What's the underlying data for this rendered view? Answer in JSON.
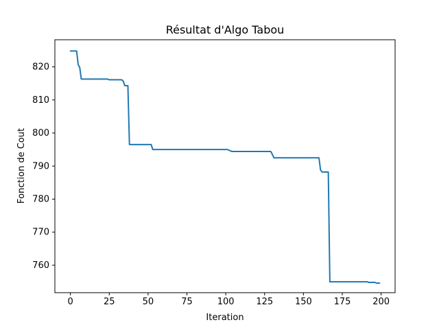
{
  "chart_data": {
    "type": "line",
    "title": "Résultat d'Algo Tabou",
    "xlabel": "Iteration",
    "ylabel": "Fonction de Cout",
    "xlim": [
      -10,
      209
    ],
    "ylim": [
      751.7,
      828.2
    ],
    "xticks": [
      0,
      25,
      50,
      75,
      100,
      125,
      150,
      175,
      200
    ],
    "yticks": [
      760,
      770,
      780,
      790,
      800,
      810,
      820
    ],
    "grid": false,
    "legend": "none",
    "series": [
      {
        "color": "#1f77b4",
        "points": [
          [
            0,
            824.8
          ],
          [
            4,
            824.8
          ],
          [
            5,
            820.7
          ],
          [
            6,
            819.8
          ],
          [
            7,
            816.3
          ],
          [
            24,
            816.3
          ],
          [
            25,
            816.1
          ],
          [
            33,
            816.1
          ],
          [
            34,
            815.7
          ],
          [
            35,
            814.3
          ],
          [
            37,
            814.3
          ],
          [
            38,
            796.5
          ],
          [
            52,
            796.5
          ],
          [
            53,
            795.0
          ],
          [
            101,
            795.0
          ],
          [
            103,
            794.6
          ],
          [
            104,
            794.4
          ],
          [
            129,
            794.4
          ],
          [
            130,
            793.5
          ],
          [
            131,
            792.5
          ],
          [
            160,
            792.5
          ],
          [
            161,
            788.8
          ],
          [
            162,
            788.2
          ],
          [
            166,
            788.2
          ],
          [
            167,
            755.0
          ],
          [
            191,
            755.0
          ],
          [
            192,
            754.8
          ],
          [
            196,
            754.8
          ],
          [
            197,
            754.6
          ],
          [
            199,
            754.6
          ]
        ]
      }
    ]
  }
}
